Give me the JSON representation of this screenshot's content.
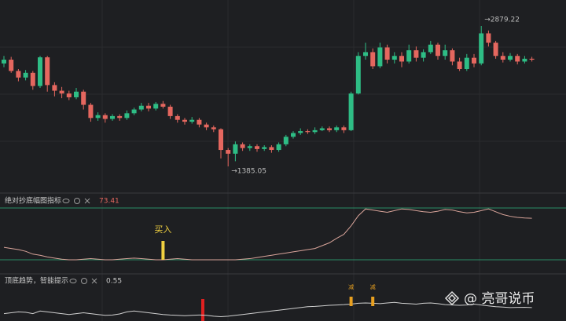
{
  "chart_data": {
    "type": "candlestick",
    "up_color": "#2ebd85",
    "down_color": "#e5675f",
    "open": [
      2480,
      2520,
      2400,
      2330,
      2380,
      2240,
      2545,
      2250,
      2190,
      2160,
      2120,
      2180,
      2040,
      1900,
      1930,
      1890,
      1920,
      1900,
      1950,
      1990,
      2030,
      2000,
      2050,
      2020,
      1920,
      1880,
      1860,
      1880,
      1830,
      1800,
      1780,
      1560,
      1520,
      1620,
      1580,
      1600,
      1570,
      1590,
      1560,
      1620,
      1700,
      1740,
      1760,
      1750,
      1770,
      1790,
      1770,
      1800,
      1770,
      2160,
      2560,
      2600,
      2450,
      2650,
      2520,
      2560,
      2500,
      2620,
      2540,
      2600,
      2680,
      2560,
      2620,
      2500,
      2420,
      2540,
      2480,
      2800,
      2700,
      2560,
      2520,
      2560,
      2500,
      2530
    ],
    "high": [
      2560,
      2550,
      2420,
      2410,
      2400,
      2560,
      2560,
      2280,
      2230,
      2190,
      2220,
      2200,
      2060,
      1960,
      1950,
      1940,
      1940,
      1980,
      2010,
      2060,
      2060,
      2070,
      2080,
      2040,
      1940,
      1900,
      1910,
      1900,
      1850,
      1820,
      1790,
      1580,
      1650,
      1640,
      1620,
      1620,
      1610,
      1610,
      1640,
      1720,
      1760,
      1790,
      1780,
      1800,
      1810,
      1810,
      1820,
      1820,
      2180,
      2600,
      2700,
      2640,
      2700,
      2680,
      2600,
      2600,
      2680,
      2660,
      2630,
      2720,
      2700,
      2680,
      2640,
      2540,
      2580,
      2580,
      2879.22,
      2830,
      2720,
      2600,
      2590,
      2580,
      2560,
      2550
    ],
    "low": [
      2440,
      2380,
      2290,
      2300,
      2200,
      2220,
      2180,
      2130,
      2110,
      2090,
      2100,
      1990,
      1860,
      1870,
      1850,
      1870,
      1870,
      1880,
      1930,
      1970,
      1970,
      1980,
      2000,
      1890,
      1850,
      1830,
      1840,
      1800,
      1770,
      1750,
      1470,
      1385.05,
      1440,
      1550,
      1550,
      1540,
      1550,
      1530,
      1540,
      1600,
      1680,
      1720,
      1730,
      1730,
      1760,
      1750,
      1750,
      1740,
      1760,
      2150,
      2520,
      2420,
      2430,
      2480,
      2480,
      2440,
      2480,
      2500,
      2500,
      2580,
      2520,
      2520,
      2460,
      2400,
      2400,
      2440,
      2460,
      2660,
      2530,
      2490,
      2500,
      2470,
      2480,
      2500
    ],
    "close": [
      2520,
      2400,
      2330,
      2380,
      2240,
      2545,
      2250,
      2190,
      2160,
      2120,
      2180,
      2040,
      1900,
      1930,
      1890,
      1920,
      1900,
      1950,
      1990,
      2030,
      2000,
      2050,
      2020,
      1920,
      1880,
      1860,
      1880,
      1830,
      1800,
      1780,
      1560,
      1520,
      1620,
      1580,
      1600,
      1570,
      1590,
      1560,
      1620,
      1700,
      1740,
      1760,
      1750,
      1770,
      1790,
      1770,
      1800,
      1770,
      2160,
      2560,
      2600,
      2450,
      2650,
      2520,
      2560,
      2500,
      2620,
      2540,
      2600,
      2680,
      2560,
      2620,
      2500,
      2420,
      2540,
      2480,
      2800,
      2700,
      2560,
      2520,
      2560,
      2500,
      2530,
      2520
    ],
    "annotations": [
      {
        "text": "→2879.22"
      },
      {
        "text": "→1385.05"
      }
    ],
    "indicators": [
      {
        "name": "绝对抄底幅图指标",
        "value_label": "73.41",
        "color": "#d9a49a",
        "signal_color": "#f0d040",
        "values": [
          22,
          20,
          18,
          15,
          10,
          8,
          5,
          3,
          1,
          0,
          0,
          1,
          2,
          1,
          0,
          0,
          1,
          2,
          3,
          2,
          1,
          0,
          0,
          1,
          2,
          1,
          0,
          0,
          0,
          0,
          0,
          0,
          0,
          1,
          2,
          4,
          6,
          8,
          10,
          12,
          14,
          16,
          18,
          20,
          25,
          30,
          38,
          45,
          60,
          78,
          90,
          88,
          86,
          84,
          87,
          90,
          89,
          87,
          85,
          84,
          86,
          89,
          88,
          85,
          83,
          84,
          87,
          90,
          85,
          80,
          77,
          75,
          74,
          73.41
        ],
        "signals": [
          null,
          null,
          null,
          null,
          null,
          null,
          null,
          null,
          null,
          null,
          null,
          null,
          null,
          null,
          null,
          null,
          null,
          null,
          null,
          null,
          null,
          null,
          "买入",
          null,
          null,
          null,
          null,
          null,
          null,
          null,
          null,
          null,
          null,
          null,
          null,
          null,
          null,
          null,
          null,
          null,
          null,
          null,
          null,
          null,
          null,
          null,
          null,
          null,
          null,
          null,
          null,
          null,
          null,
          null,
          null,
          null,
          null,
          null,
          null,
          null,
          null,
          null,
          null,
          null,
          null,
          null,
          null,
          null,
          null,
          null,
          null,
          null,
          null,
          null
        ]
      },
      {
        "name": "顶底趋势，智能提示",
        "value_label": "0.55",
        "color": "#d0d0d0",
        "signal_color": "#e8a020",
        "values": [
          0.2,
          0.25,
          0.3,
          0.28,
          0.2,
          0.35,
          0.3,
          0.25,
          0.2,
          0.15,
          0.2,
          0.25,
          0.2,
          0.15,
          0.1,
          0.12,
          0.18,
          0.3,
          0.35,
          0.3,
          0.25,
          0.2,
          0.15,
          0.12,
          0.1,
          0.08,
          0.1,
          0.12,
          0.1,
          0.05,
          0.02,
          0.05,
          0.1,
          0.15,
          0.2,
          0.25,
          0.3,
          0.35,
          0.4,
          0.45,
          0.5,
          0.55,
          0.6,
          0.62,
          0.65,
          0.68,
          0.7,
          0.72,
          0.75,
          0.8,
          0.82,
          0.8,
          0.78,
          0.82,
          0.85,
          0.8,
          0.78,
          0.75,
          0.8,
          0.82,
          0.78,
          0.72,
          0.7,
          0.68,
          0.7,
          0.75,
          0.7,
          0.65,
          0.6,
          0.58,
          0.55,
          0.56,
          0.57,
          0.55
        ],
        "signals": [
          null,
          null,
          null,
          null,
          null,
          null,
          null,
          null,
          null,
          null,
          null,
          null,
          null,
          null,
          null,
          null,
          null,
          null,
          null,
          null,
          null,
          null,
          null,
          null,
          null,
          null,
          null,
          null,
          null,
          null,
          null,
          null,
          null,
          null,
          null,
          null,
          null,
          null,
          null,
          null,
          null,
          null,
          null,
          null,
          null,
          null,
          null,
          null,
          "减",
          null,
          null,
          "减",
          null,
          null,
          null,
          null,
          null,
          null,
          null,
          null,
          null,
          null,
          null,
          null,
          null,
          null,
          null,
          null,
          null,
          null,
          null,
          null,
          null,
          null
        ]
      }
    ],
    "watermark": "@ 亮哥说币"
  }
}
